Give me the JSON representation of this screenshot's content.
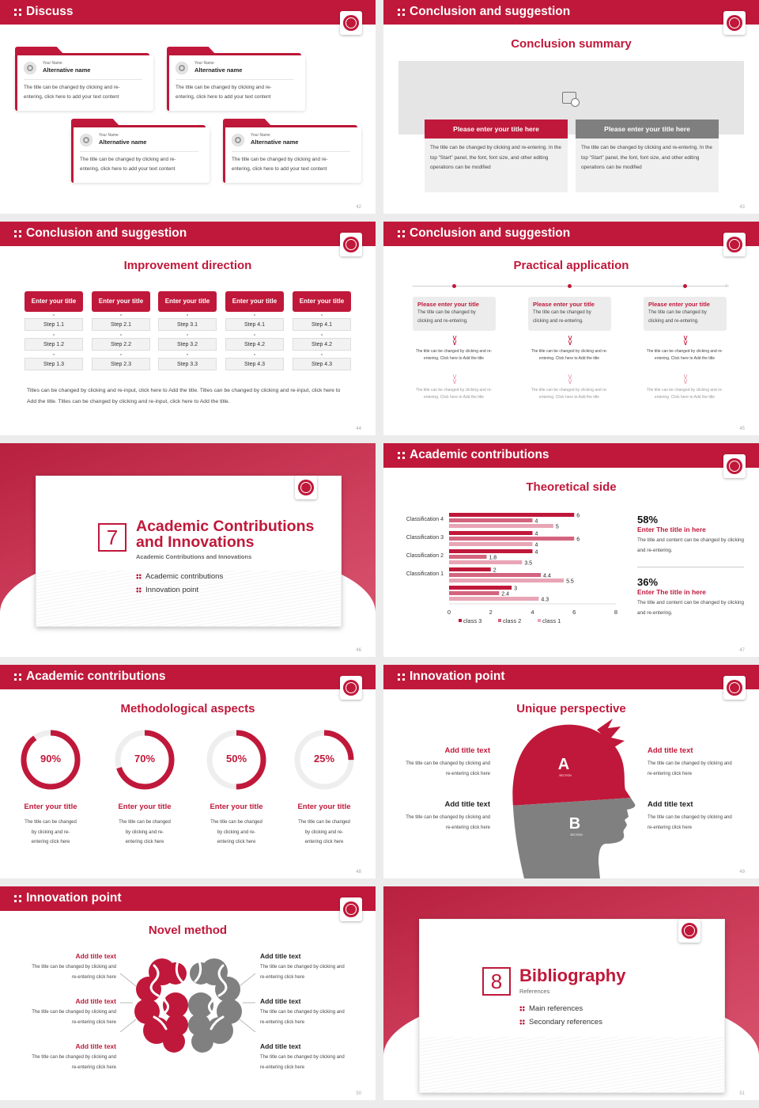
{
  "theme": {
    "primary": "#c0183a",
    "gray": "#808080",
    "medium": "#d4647e",
    "light": "#e8a5b5"
  },
  "slides": [
    {
      "page": "42",
      "header": "Discuss",
      "cards": [
        {
          "small": "Your Name",
          "name": "Alternative name",
          "text": "The title can be changed by clicking and re-entering, click here to add your text content"
        },
        {
          "small": "Your Name",
          "name": "Alternative name",
          "text": "The title can be changed by clicking and re-entering, click here to add your text content"
        },
        {
          "small": "Your Name",
          "name": "Alternative name",
          "text": "The title can be changed by clicking and re-entering, click here to add your text content"
        },
        {
          "small": "Your Name",
          "name": "Alternative name",
          "text": "The title can be changed by clicking and re-entering, click here to add your text content"
        }
      ]
    },
    {
      "page": "43",
      "header": "Conclusion and suggestion",
      "title": "Conclusion summary",
      "boxes": [
        {
          "title": "Please enter your title here",
          "text": "The title can be changed by clicking and re-entering. In the top \"Start\" panel, the font, font size, and other editing operations can be modified"
        },
        {
          "title": "Please enter your title here",
          "text": "The title can be changed by clicking and re-entering. In the top \"Start\" panel, the font, font size, and other editing operations can be modified"
        }
      ]
    },
    {
      "page": "44",
      "header": "Conclusion and suggestion",
      "title": "Improvement direction",
      "columns": [
        {
          "title": "Enter your title",
          "steps": [
            "Step 1.1",
            "Step 1.2",
            "Step 1.3"
          ]
        },
        {
          "title": "Enter your title",
          "steps": [
            "Step 2.1",
            "Step 2.2",
            "Step 2.3"
          ]
        },
        {
          "title": "Enter your title",
          "steps": [
            "Step 3.1",
            "Step 3.2",
            "Step 3.3"
          ]
        },
        {
          "title": "Enter your title",
          "steps": [
            "Step 4.1",
            "Step 4.2",
            "Step 4.3"
          ]
        },
        {
          "title": "Enter your title",
          "steps": [
            "Step 4.1",
            "Step 4.2",
            "Step 4.3"
          ]
        }
      ],
      "paragraph": "Titles can be changed by clicking and re-input, click here to Add the title. Titles can be changed by clicking and re-input, click here to Add the title. Titles can be changed by clicking and re-input, click here to Add the title."
    },
    {
      "page": "45",
      "header": "Conclusion and suggestion",
      "title": "Practical application",
      "items": [
        {
          "title": "Please enter your title",
          "text": "The title can be changed by clicking and re-entering.",
          "sub1": "The title can be changed by clicking and re-entering. Click here to Add the title",
          "sub2": "The title can be changed by clicking and re-entering. Click here to Add the title"
        },
        {
          "title": "Please enter your title",
          "text": "The title can be changed by clicking and re-entering.",
          "sub1": "The title can be changed by clicking and re-entering. Click here to Add the title",
          "sub2": "The title can be changed by clicking and re-entering. Click here to Add the title"
        },
        {
          "title": "Please enter your title",
          "text": "The title can be changed by clicking and re-entering.",
          "sub1": "The title can be changed by clicking and re-entering. Click here to Add the title",
          "sub2": "The title can be changed by clicking and re-entering. Click here to Add the title"
        }
      ]
    },
    {
      "page": "46",
      "number": "7",
      "title": "Academic Contributions and Innovations",
      "subtitle": "Academic Contributions and Innovations",
      "items": [
        "Academic contributions",
        "Innovation point"
      ]
    },
    {
      "page": "47",
      "header": "Academic contributions",
      "title": "Theoretical side",
      "stats": [
        {
          "value": "58%",
          "title": "Enter The title in here",
          "text": "The title and content can be changed by clicking and re-entering."
        },
        {
          "value": "36%",
          "title": "Enter The title in here",
          "text": "The title and content can be changed by clicking and re-entering."
        }
      ]
    },
    {
      "page": "48",
      "header": "Academic contributions",
      "title": "Methodological aspects",
      "rings": [
        {
          "percent": 90,
          "label": "90%",
          "title": "Enter your title",
          "text": "The title can be changed by clicking and re-entering click here"
        },
        {
          "percent": 70,
          "label": "70%",
          "title": "Enter your title",
          "text": "The title can be changed by clicking and re-entering click here"
        },
        {
          "percent": 50,
          "label": "50%",
          "title": "Enter your title",
          "text": "The title can be changed by clicking and re-entering click here"
        },
        {
          "percent": 25,
          "label": "25%",
          "title": "Enter your title",
          "text": "The title can be changed by clicking and re-entering click here"
        }
      ]
    },
    {
      "page": "49",
      "header": "Innovation point",
      "title": "Unique perspective",
      "head": {
        "a": "A",
        "a_sub": "SECTION",
        "b": "B",
        "b_sub": "SECTION"
      },
      "left": [
        {
          "title": "Add title text",
          "text": "The title can be changed by clicking and re-entering click here"
        },
        {
          "title": "Add title text",
          "text": "The title can be changed by clicking and re-entering click here"
        }
      ],
      "right": [
        {
          "title": "Add title text",
          "text": "The title can be changed by clicking and re-entering click here"
        },
        {
          "title": "Add title text",
          "text": "The title can be changed by clicking and re-entering click here"
        }
      ]
    },
    {
      "page": "50",
      "header": "Innovation point",
      "title": "Novel method",
      "left": [
        {
          "title": "Add title text",
          "text": "The title can be changed by clicking and re-entering click here"
        },
        {
          "title": "Add title text",
          "text": "The title can be changed by clicking and re-entering click here"
        },
        {
          "title": "Add title text",
          "text": "The title can be changed by clicking and re-entering click here"
        }
      ],
      "right": [
        {
          "title": "Add title text",
          "text": "The title can be changed by clicking and re-entering click here"
        },
        {
          "title": "Add title text",
          "text": "The title can be changed by clicking and re-entering click here"
        },
        {
          "title": "Add title text",
          "text": "The title can be changed by clicking and re-entering click here"
        }
      ]
    },
    {
      "page": "51",
      "number": "8",
      "title": "Bibliography",
      "subtitle": "References",
      "items": [
        "Main references",
        "Secondary references"
      ]
    }
  ],
  "chart_data": {
    "type": "bar",
    "orientation": "horizontal",
    "categories": [
      "",
      "Classification 1",
      "Classification 2",
      "Classification 3",
      "Classification 4"
    ],
    "series": [
      {
        "name": "class 3",
        "color": "#c0183a",
        "values": [
          3,
          2,
          4,
          4,
          6
        ]
      },
      {
        "name": "class 2",
        "color": "#d4647e",
        "values": [
          2.4,
          4.4,
          1.8,
          6,
          4
        ]
      },
      {
        "name": "class 1",
        "color": "#e8a5b5",
        "values": [
          4.3,
          5.5,
          3.5,
          4,
          5
        ]
      }
    ],
    "xlim": [
      0,
      8
    ],
    "xticks": [
      "0",
      "2",
      "4",
      "6",
      "8"
    ],
    "grid": false,
    "data_labels": true,
    "legend": "bottom"
  }
}
